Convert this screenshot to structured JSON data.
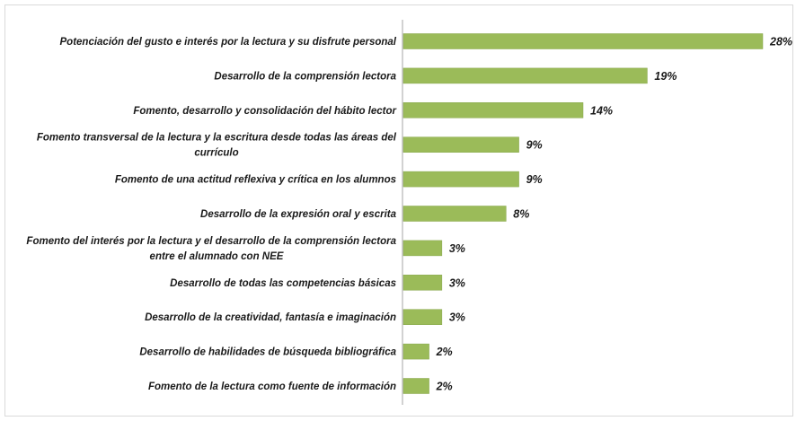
{
  "chart_data": {
    "type": "bar",
    "orientation": "horizontal",
    "categories": [
      [
        "Potenciación del gusto e interés por la lectura y su disfrute personal"
      ],
      [
        "Desarrollo de la comprensión lectora"
      ],
      [
        "Fomento, desarrollo y consolidación del hábito lector"
      ],
      [
        "Fomento transversal de la lectura y la escritura desde todas las áreas del",
        "currículo"
      ],
      [
        "Fomento de una actitud reflexiva y crítica en los alumnos"
      ],
      [
        "Desarrollo de la expresión oral y escrita"
      ],
      [
        "Fomento del interés por la lectura y el desarrollo de la comprensión lectora",
        "entre el alumnado con NEE"
      ],
      [
        "Desarrollo de todas las competencias básicas"
      ],
      [
        "Desarrollo de la creatividad, fantasía e imaginación"
      ],
      [
        "Desarrollo de habilidades de búsqueda bibliográfica"
      ],
      [
        "Fomento de la lectura como fuente de información"
      ]
    ],
    "values": [
      28,
      19,
      14,
      9,
      9,
      8,
      3,
      3,
      3,
      2,
      2
    ],
    "value_labels": [
      "28%",
      "19%",
      "14%",
      "9%",
      "9%",
      "8%",
      "3%",
      "3%",
      "3%",
      "2%",
      "2%"
    ],
    "unit": "%",
    "xlim": [
      0,
      28
    ],
    "grid": false,
    "legend": "none",
    "colors": {
      "bar": "#9bbb59",
      "bar_stroke": "#86a54a",
      "axis": "#a6a6a6",
      "text": "#1a1a1a"
    }
  }
}
